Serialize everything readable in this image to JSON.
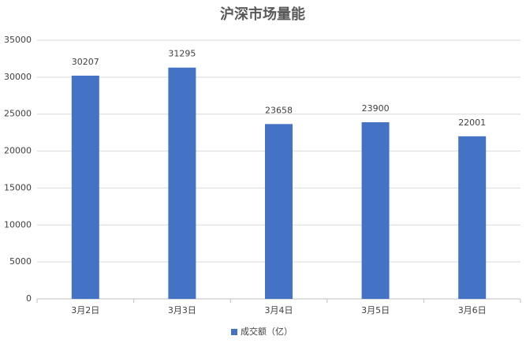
{
  "chart_data": {
    "type": "bar",
    "title": "沪深市场量能",
    "categories": [
      "3月2日",
      "3月3日",
      "3月4日",
      "3月5日",
      "3月6日"
    ],
    "series": [
      {
        "name": "成交额（亿）",
        "color": "#4472c4",
        "values": [
          30207,
          31295,
          23658,
          23900,
          22001
        ]
      }
    ],
    "ylim": [
      0,
      35000
    ],
    "yticks": [
      0,
      5000,
      10000,
      15000,
      20000,
      25000,
      30000,
      35000
    ],
    "grid": true,
    "legend": "bottom"
  }
}
